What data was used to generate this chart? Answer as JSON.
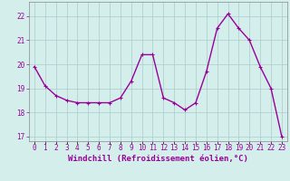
{
  "x": [
    0,
    1,
    2,
    3,
    4,
    5,
    6,
    7,
    8,
    9,
    10,
    11,
    12,
    13,
    14,
    15,
    16,
    17,
    18,
    19,
    20,
    21,
    22,
    23
  ],
  "y": [
    19.9,
    19.1,
    18.7,
    18.5,
    18.4,
    18.4,
    18.4,
    18.4,
    18.6,
    19.3,
    20.4,
    20.4,
    18.6,
    18.4,
    18.1,
    18.4,
    19.7,
    21.5,
    22.1,
    21.5,
    21.0,
    19.9,
    19.0,
    17.0
  ],
  "line_color": "#990099",
  "marker": "+",
  "marker_size": 3,
  "marker_lw": 0.8,
  "bg_color": "#d4eeec",
  "grid_color": "#aacccc",
  "xlabel": "Windchill (Refroidissement éolien,°C)",
  "ylabel": "",
  "ylim": [
    16.8,
    22.6
  ],
  "yticks": [
    17,
    18,
    19,
    20,
    21,
    22
  ],
  "xlim": [
    -0.5,
    23.5
  ],
  "xlabel_fontsize": 6.5,
  "tick_fontsize": 5.5,
  "line_width": 1.0
}
